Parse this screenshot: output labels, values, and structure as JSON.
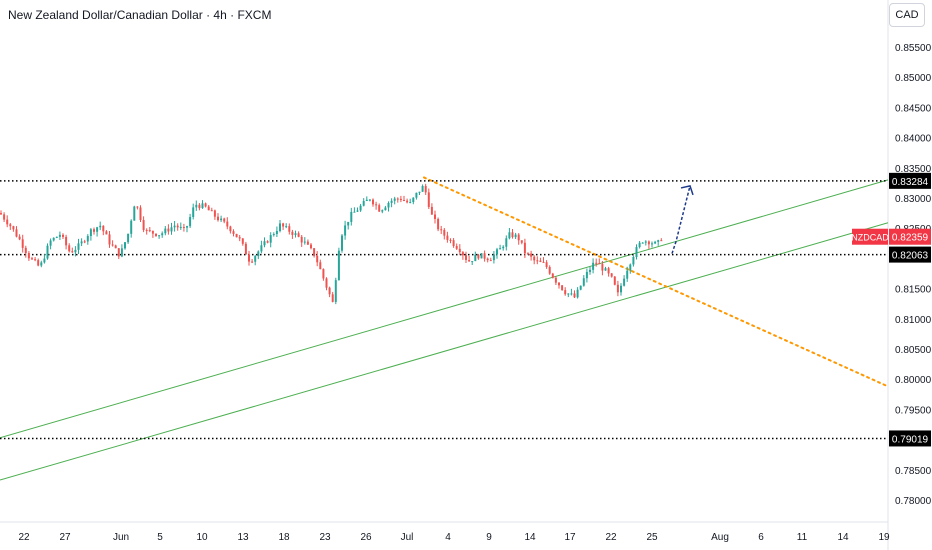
{
  "header": {
    "title": "New Zealand Dollar/Canadian Dollar · 4h · FXCM"
  },
  "currency_button": "CAD",
  "chart_data": {
    "type": "candlestick",
    "symbol": "NZDCAD",
    "y_ticks": [
      "0.85500",
      "0.85000",
      "0.84500",
      "0.84000",
      "0.83500",
      "0.83000",
      "0.82500",
      "0.82000",
      "0.81500",
      "0.81000",
      "0.80500",
      "0.80000",
      "0.79500",
      "0.79000",
      "0.78500",
      "0.78000"
    ],
    "x_ticks": [
      "22",
      "27",
      "Jun",
      "5",
      "10",
      "13",
      "18",
      "23",
      "26",
      "Jul",
      "4",
      "9",
      "14",
      "17",
      "22",
      "25",
      "Aug",
      "6",
      "11",
      "14",
      "19"
    ],
    "ylim": [
      0.7775,
      0.8603
    ],
    "horizontal_levels": [
      {
        "value": 0.83284,
        "label": "0.83284"
      },
      {
        "value": 0.82063,
        "label": "0.82063"
      },
      {
        "value": 0.79019,
        "label": "0.79019"
      }
    ],
    "current_price": {
      "label": "NZDCAD",
      "value": "0.82359"
    },
    "colors": {
      "up": "#26a69a",
      "down": "#ef5350",
      "trend_support": "#4caf50",
      "trend_resistance": "#ff9800",
      "projection": "#1e3a8a",
      "price_label": "#f23645"
    },
    "annotations": [
      {
        "type": "trendline-dotted",
        "from_tick": "Jul",
        "to_tick": "19",
        "from_value": 0.8334,
        "to_value": 0.7988
      },
      {
        "type": "channel-line",
        "from_value": 0.7903,
        "to_value": 0.833
      },
      {
        "type": "channel-line",
        "from_value": 0.7833,
        "to_value": 0.8259
      },
      {
        "type": "arrow",
        "direction": "up",
        "from_value": 0.8208,
        "to_value": 0.832
      }
    ]
  }
}
